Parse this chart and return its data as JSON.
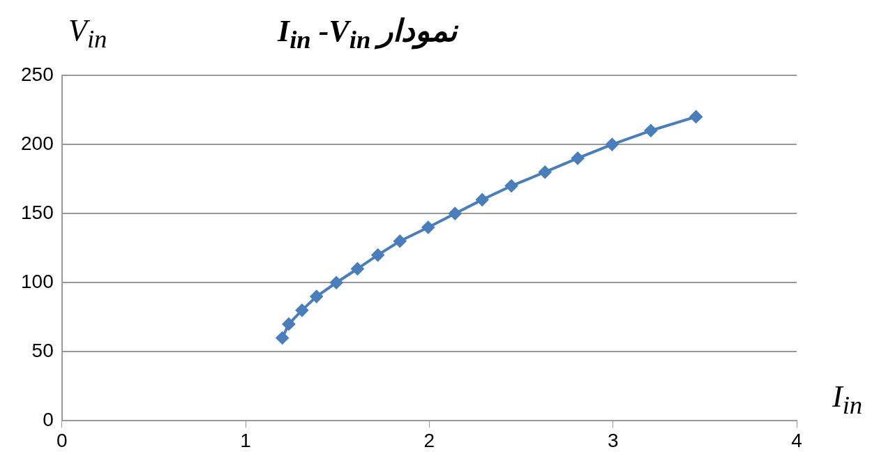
{
  "chart_data": {
    "type": "line",
    "title": "I$_{in}$ -V$_{in}$ نمودار",
    "xlabel": "I$_{in}$",
    "ylabel": "V$_{in}$",
    "series": [
      {
        "color": "#4a7ebb",
        "x": [
          1.2,
          1.235,
          1.307,
          1.386,
          1.494,
          1.609,
          1.72,
          1.84,
          1.994,
          2.14,
          2.288,
          2.447,
          2.63,
          2.808,
          2.995,
          3.206,
          3.452
        ],
        "values": [
          60,
          70,
          80,
          90,
          100,
          110,
          120,
          130,
          140,
          150,
          160,
          170,
          180,
          190,
          200,
          210,
          220
        ]
      }
    ],
    "xlim": [
      0,
      4
    ],
    "xticks": [
      0,
      1,
      2,
      3,
      4
    ],
    "ylim": [
      0,
      250
    ],
    "yticks": [
      0,
      50,
      100,
      150,
      200,
      250
    ],
    "grid": "y",
    "legend": false,
    "marker": "diamond",
    "line_style": "solid"
  }
}
